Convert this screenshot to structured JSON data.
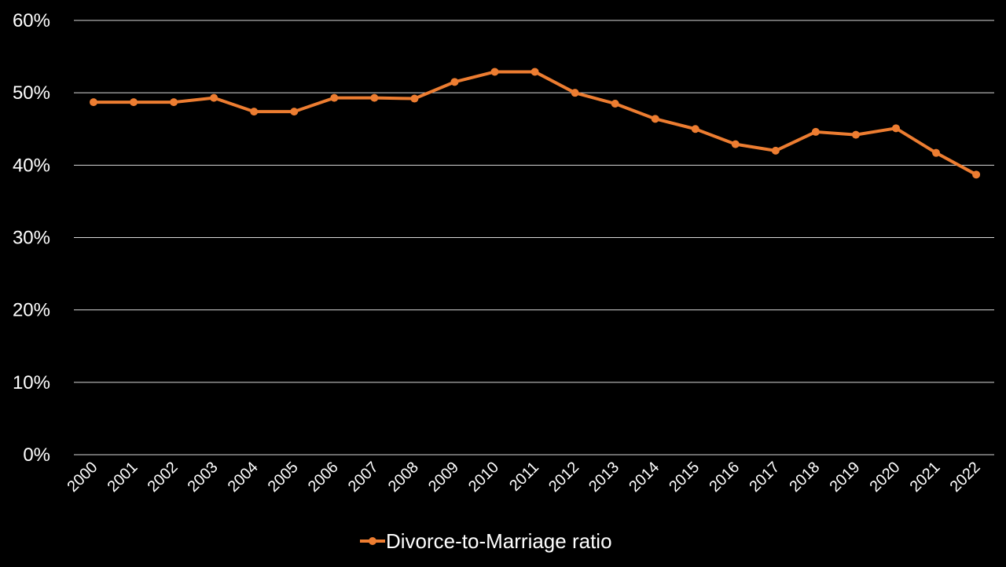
{
  "chart_data": {
    "type": "line",
    "x": [
      "2000",
      "2001",
      "2002",
      "2003",
      "2004",
      "2005",
      "2006",
      "2007",
      "2008",
      "2009",
      "2010",
      "2011",
      "2012",
      "2013",
      "2014",
      "2015",
      "2016",
      "2017",
      "2018",
      "2019",
      "2020",
      "2021",
      "2022"
    ],
    "series": [
      {
        "name": "Divorce-to-Marriage ratio",
        "values": [
          48.7,
          48.7,
          48.7,
          49.3,
          47.4,
          47.4,
          49.3,
          49.3,
          49.2,
          51.5,
          52.9,
          52.9,
          50.0,
          48.5,
          46.4,
          45.0,
          42.9,
          42.0,
          44.6,
          44.2,
          45.1,
          41.7,
          38.7
        ],
        "color": "#ed7d31"
      }
    ],
    "ylim": [
      0,
      60
    ],
    "yticks": [
      "0%",
      "10%",
      "20%",
      "30%",
      "40%",
      "50%",
      "60%"
    ],
    "y_unit": "%",
    "grid": true,
    "legend_position": "bottom",
    "background": "#000000"
  }
}
